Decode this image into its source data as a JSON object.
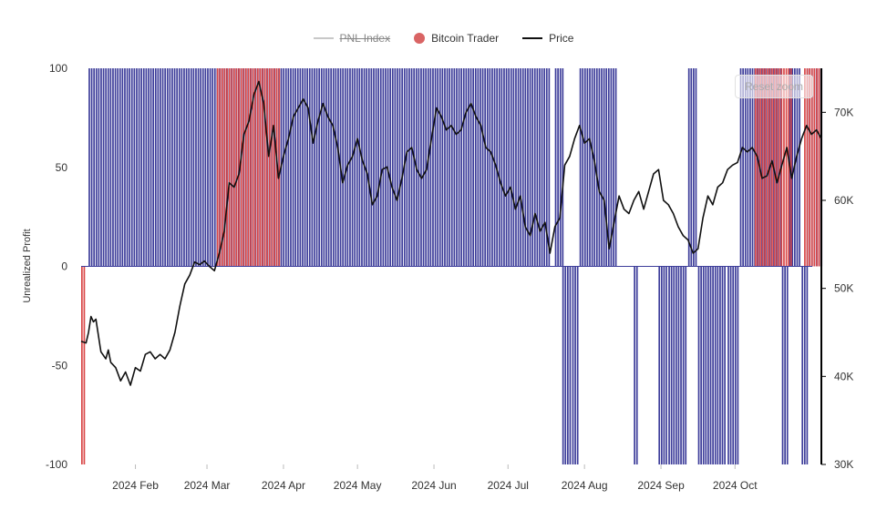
{
  "legend": {
    "pnl_label": "PNL Index",
    "trader_label": "Bitcoin Trader",
    "price_label": "Price"
  },
  "reset_zoom_label": "Reset zoom",
  "colors": {
    "pnl_bar": "#3d3d9a",
    "trader_red": "#d94848",
    "price_line": "#111111",
    "legend_gray": "#c8c8c8",
    "axis": "#000000"
  },
  "chart_data": {
    "type": "bar",
    "title": "",
    "xlabel": "",
    "ylabel": "Unrealized Profit",
    "ylim": [
      -100,
      100
    ],
    "y_ticks": [
      "100",
      "50",
      "0",
      "-50",
      "-100"
    ],
    "y2lim": [
      30000,
      75000
    ],
    "y2_ticks": [
      "70K",
      "60K",
      "50K",
      "40K",
      "30K"
    ],
    "x_ticks": [
      "2024 Feb",
      "2024 Mar",
      "2024 Apr",
      "2024 May",
      "2024 Jun",
      "2024 Jul",
      "2024 Aug",
      "2024 Sep",
      "2024 Oct"
    ],
    "x_range_days": [
      0,
      300
    ],
    "series": [
      {
        "name": "PNL Index",
        "style": "vertical bars from zero",
        "segments": [
          {
            "from": 3,
            "to": 190,
            "value": 100
          },
          {
            "from": 192,
            "to": 195,
            "value": 100
          },
          {
            "from": 195,
            "to": 198,
            "value": -100
          },
          {
            "from": 199,
            "to": 201,
            "value": -100
          },
          {
            "from": 202,
            "to": 217,
            "value": 100
          },
          {
            "from": 224,
            "to": 225,
            "value": -100
          },
          {
            "from": 234,
            "to": 237,
            "value": -100
          },
          {
            "from": 238,
            "to": 245,
            "value": -100
          },
          {
            "from": 246,
            "to": 249,
            "value": 100
          },
          {
            "from": 250,
            "to": 261,
            "value": -100
          },
          {
            "from": 262,
            "to": 266,
            "value": -100
          },
          {
            "from": 267,
            "to": 284,
            "value": 100
          },
          {
            "from": 284,
            "to": 286,
            "value": -100
          },
          {
            "from": 287,
            "to": 291,
            "value": 100
          },
          {
            "from": 292,
            "to": 294,
            "value": -100
          },
          {
            "from": 294,
            "to": 300,
            "value": 100
          }
        ]
      },
      {
        "name": "Bitcoin Trader",
        "style": "red highlight bars",
        "segments": [
          {
            "from": 0,
            "to": 1,
            "value": -100
          },
          {
            "from": 55,
            "to": 80,
            "value": 100
          },
          {
            "from": 273,
            "to": 288,
            "value": 100
          },
          {
            "from": 293,
            "to": 300,
            "value": 100
          }
        ]
      },
      {
        "name": "Price",
        "axis": "right",
        "style": "line",
        "x": [
          0,
          2,
          3,
          4,
          5,
          6,
          8,
          10,
          11,
          12,
          14,
          16,
          18,
          20,
          22,
          24,
          26,
          28,
          30,
          32,
          34,
          36,
          38,
          40,
          42,
          44,
          46,
          48,
          50,
          52,
          54,
          56,
          58,
          60,
          62,
          64,
          66,
          68,
          70,
          72,
          74,
          76,
          78,
          80,
          82,
          84,
          86,
          88,
          90,
          92,
          94,
          96,
          98,
          100,
          102,
          104,
          106,
          108,
          110,
          112,
          114,
          116,
          118,
          120,
          122,
          124,
          126,
          128,
          130,
          132,
          134,
          136,
          138,
          140,
          142,
          144,
          146,
          148,
          150,
          152,
          154,
          156,
          158,
          160,
          162,
          164,
          166,
          168,
          170,
          172,
          174,
          176,
          178,
          180,
          182,
          184,
          186,
          188,
          190,
          192,
          194,
          196,
          198,
          200,
          202,
          204,
          206,
          208,
          210,
          212,
          214,
          216,
          218,
          220,
          222,
          224,
          226,
          228,
          230,
          232,
          234,
          236,
          238,
          240,
          242,
          244,
          246,
          248,
          250,
          252,
          254,
          256,
          258,
          260,
          262,
          264,
          266,
          268,
          270,
          272,
          274,
          276,
          278,
          280,
          282,
          284,
          286,
          288,
          290,
          292,
          294,
          296,
          298,
          300
        ],
        "values": [
          44000,
          43800,
          45000,
          46800,
          46200,
          46500,
          42800,
          42000,
          43000,
          41600,
          41000,
          39500,
          40500,
          39000,
          41000,
          40600,
          42500,
          42800,
          42000,
          42500,
          42000,
          43000,
          45000,
          48000,
          50500,
          51500,
          53000,
          52700,
          53100,
          52500,
          52000,
          54000,
          56500,
          62000,
          61500,
          63000,
          67500,
          69000,
          72000,
          73500,
          71000,
          65000,
          68500,
          62500,
          65000,
          67000,
          69500,
          70500,
          71500,
          70500,
          66500,
          69000,
          71000,
          69500,
          68500,
          66000,
          62000,
          64000,
          65000,
          67000,
          64500,
          63000,
          59500,
          60500,
          63500,
          63800,
          61500,
          60000,
          62500,
          65500,
          66000,
          63500,
          62500,
          63500,
          67000,
          70500,
          69500,
          68000,
          68500,
          67500,
          68000,
          70000,
          71000,
          69500,
          68500,
          66000,
          65500,
          64000,
          62000,
          60500,
          61500,
          59000,
          60500,
          57000,
          56000,
          58500,
          56500,
          57500,
          54000,
          57000,
          58000,
          64000,
          65000,
          67000,
          68500,
          66500,
          67000,
          64500,
          61000,
          60000,
          54500,
          57500,
          60500,
          59000,
          58500,
          60000,
          61000,
          59000,
          61000,
          63000,
          63500,
          60000,
          59500,
          58500,
          57000,
          56000,
          55500,
          54000,
          54500,
          58000,
          60500,
          59500,
          61500,
          62000,
          63500,
          64000,
          64300,
          66000,
          65500,
          66000,
          65000,
          62500,
          62800,
          64500,
          62000,
          64000,
          66000,
          62500,
          65000,
          67000,
          68500,
          67500,
          68000,
          67000
        ]
      }
    ],
    "grid": false,
    "legend_position": "top-center"
  }
}
